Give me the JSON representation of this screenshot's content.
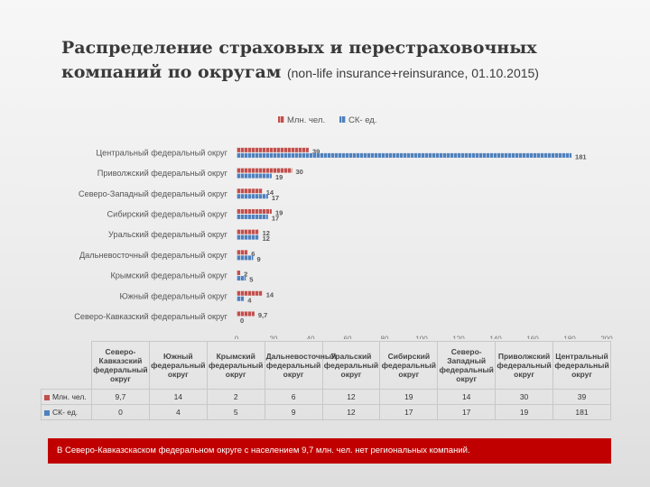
{
  "page": {
    "title": "Распределение страховых и перестраховочных компаний по округам",
    "subtitle": "(non-life insurance+reinsurance, 01.10.2015)",
    "note": "В Северо-Кавказскаском федеральном округе с населением 9,7 млн. чел. нет региональных компаний."
  },
  "chart_data": {
    "type": "bar",
    "orientation": "horizontal",
    "categories": [
      "Центральный федеральный округ",
      "Приволжский федеральный округ",
      "Северо-Западный федеральный округ",
      "Сибирский федеральный округ",
      "Уральский федеральный округ",
      "Дальневосточный федеральный округ",
      "Крымский федеральный округ",
      "Южный федеральный округ",
      "Северо-Кавказский федеральный округ"
    ],
    "series": [
      {
        "name": "Млн. чел.",
        "color": "#c0504d",
        "values": [
          39,
          30,
          14,
          19,
          12,
          6,
          2,
          14,
          9.7
        ],
        "labels": [
          "39",
          "30",
          "14",
          "19",
          "12",
          "6",
          "2",
          "14",
          "9,7"
        ]
      },
      {
        "name": "СК- ед.",
        "color": "#4f81bd",
        "values": [
          181,
          19,
          17,
          17,
          12,
          9,
          5,
          4,
          0
        ],
        "labels": [
          "181",
          "19",
          "17",
          "17",
          "12",
          "9",
          "5",
          "4",
          "0"
        ]
      }
    ],
    "xlim": [
      0,
      200
    ],
    "xticks": [
      0,
      20,
      40,
      60,
      80,
      100,
      120,
      140,
      160,
      180,
      200
    ],
    "legend_position": "top",
    "grid": false,
    "table": {
      "columns": [
        "Северо-Кавказский федеральный округ",
        "Южный федеральный округ",
        "Крымский федеральный округ",
        "Дальневосточный федеральный округ",
        "Уральский федеральный округ",
        "Сибирский федеральный округ",
        "Северо-Западный федеральный округ",
        "Приволжский федеральный округ",
        "Центральный федеральный округ"
      ],
      "header_labels": [
        "Северо-Кавказский федеральный округ",
        "Южный федеральный округ",
        "Крымский федеральный округ",
        "Дальневосточный федеральный округ",
        "Уральский федеральный округ",
        "Сибирский федеральный округ",
        "Северо-Западный федеральный округ",
        "Приволжский федеральный округ",
        "Центральный федеральный округ"
      ],
      "rows": [
        {
          "name": "Млн. чел.",
          "color": "#c0504d",
          "values": [
            "9,7",
            "14",
            "2",
            "6",
            "12",
            "19",
            "14",
            "30",
            "39"
          ]
        },
        {
          "name": "СК- ед.",
          "color": "#4f81bd",
          "values": [
            "0",
            "4",
            "5",
            "9",
            "12",
            "17",
            "17",
            "19",
            "181"
          ]
        }
      ]
    }
  }
}
